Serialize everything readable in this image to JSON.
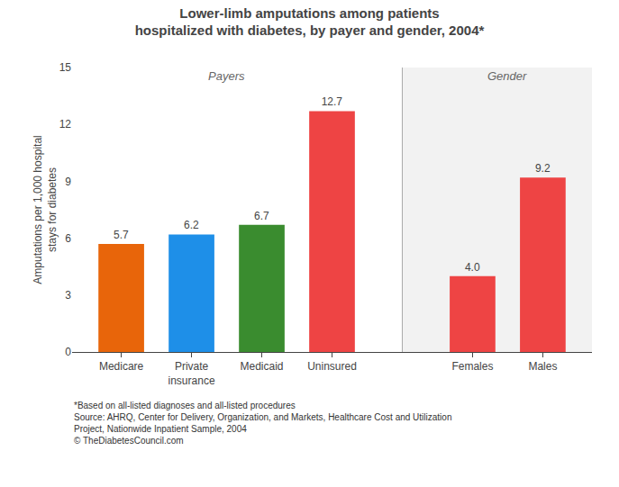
{
  "chart_data": {
    "type": "bar",
    "title": "Lower-limb amputations among patients\nhospitalized with diabetes, by payer and gender, 2004*",
    "ylabel": "Amputations per 1,000 hospital\nstays for diabetes",
    "categories": [
      "Medicare",
      "Private\ninsurance",
      "Medicaid",
      "Uninsured",
      "Females",
      "Males"
    ],
    "values": [
      5.7,
      6.2,
      6.7,
      12.7,
      4.0,
      9.2
    ],
    "value_labels": [
      "5.7",
      "6.2",
      "6.7",
      "12.7",
      "4.0",
      "9.2"
    ],
    "data_labels": true,
    "colors": [
      "#E8650A",
      "#1E8FE8",
      "#3A8C2F",
      "#EE4444",
      "#EE4444",
      "#EE4444"
    ],
    "ylim": [
      0,
      15
    ],
    "yticks": [
      0,
      3,
      6,
      9,
      12,
      15
    ],
    "grid": false,
    "annotations": [
      {
        "text": "Payers",
        "categories": [
          "Medicare",
          "Private\ninsurance",
          "Medicaid",
          "Uninsured"
        ]
      },
      {
        "text": "Gender",
        "categories": [
          "Females",
          "Males"
        ]
      },
      {
        "text": "*Based on all-listed diagnoses and all-listed procedures"
      },
      {
        "text": "Source: AHRQ, Center for Delivery, Organization, and Markets, Healthcare Cost and Utilization Project, Nationwide Inpatient Sample, 2004"
      },
      {
        "text": "© TheDiabetesCouncil.com"
      }
    ]
  }
}
